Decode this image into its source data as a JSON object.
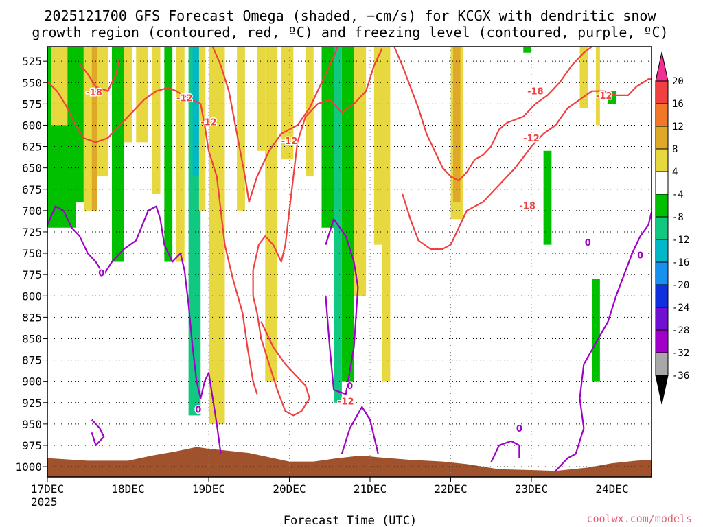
{
  "chart_data": {
    "type": "heatmap",
    "title_line1": "2025121700 GFS Forecast Omega (shaded, −cm/s) for KCGX with dendritic snow",
    "title_line2": "growth region (contoured, red, ºC) and freezing level (contoured, purple, ºC)",
    "xlabel": "Forecast Time (UTC)",
    "year_label": "2025",
    "credit": "coolwx.com/models",
    "x_ticks": [
      "17DEC",
      "18DEC",
      "19DEC",
      "20DEC",
      "21DEC",
      "22DEC",
      "23DEC",
      "24DEC"
    ],
    "x_range_days": [
      0,
      7.5
    ],
    "y_ticks": [
      525,
      550,
      575,
      600,
      625,
      650,
      675,
      700,
      725,
      750,
      775,
      800,
      825,
      850,
      875,
      900,
      925,
      950,
      975,
      1000
    ],
    "y_range_hpa": [
      508,
      1012
    ],
    "colorbar_labels": [
      20,
      16,
      12,
      8,
      4,
      -4,
      -8,
      -12,
      -16,
      -20,
      -24,
      -28,
      -32,
      -36
    ],
    "colorbar_colors": [
      "#f03090",
      "#f04040",
      "#f07828",
      "#e0a828",
      "#e8d840",
      "#ffffff",
      "#00c000",
      "#10c880",
      "#00b8c8",
      "#1890f0",
      "#1030e0",
      "#7010d0",
      "#a000c8",
      "#a8a8a8",
      "#000000"
    ],
    "colors": {
      "omega_positive": "#e8d840",
      "omega_strong_positive": "#e0a828",
      "omega_negative": "#00c000",
      "omega_neg12": "#10c880",
      "omega_neg16": "#00b8c8",
      "dgz_contour": "#f04040",
      "freezing_contour": "#a000c8",
      "terrain": "#a0522d"
    },
    "contour_labels": [
      {
        "text": "-18",
        "kind": "dgz",
        "day": 0.58,
        "hpa": 561
      },
      {
        "text": "-12",
        "kind": "dgz",
        "day": 1.7,
        "hpa": 568
      },
      {
        "text": "-12",
        "kind": "dgz",
        "day": 2.0,
        "hpa": 596
      },
      {
        "text": "-12",
        "kind": "dgz",
        "day": 3.0,
        "hpa": 618
      },
      {
        "text": "-12",
        "kind": "dgz",
        "day": 3.7,
        "hpa": 923
      },
      {
        "text": "-12",
        "kind": "dgz",
        "day": 6.0,
        "hpa": 615
      },
      {
        "text": "-18",
        "kind": "dgz",
        "day": 5.95,
        "hpa": 694
      },
      {
        "text": "-18",
        "kind": "dgz",
        "day": 6.05,
        "hpa": 560
      },
      {
        "text": "-12",
        "kind": "dgz",
        "day": 6.9,
        "hpa": 565
      },
      {
        "text": "0",
        "kind": "frz",
        "day": 0.67,
        "hpa": 773
      },
      {
        "text": "0",
        "kind": "frz",
        "day": 1.87,
        "hpa": 933
      },
      {
        "text": "0",
        "kind": "frz",
        "day": 3.75,
        "hpa": 905
      },
      {
        "text": "0",
        "kind": "frz",
        "day": 5.85,
        "hpa": 955
      },
      {
        "text": "0",
        "kind": "frz",
        "day": 6.7,
        "hpa": 737
      },
      {
        "text": "0",
        "kind": "frz",
        "day": 7.35,
        "hpa": 752
      }
    ],
    "dgz_contours": [
      [
        [
          0,
          549
        ],
        [
          0.12,
          560
        ],
        [
          0.25,
          580
        ],
        [
          0.35,
          600
        ],
        [
          0.45,
          615
        ],
        [
          0.6,
          620
        ],
        [
          0.75,
          615
        ],
        [
          0.9,
          600
        ],
        [
          1.05,
          585
        ],
        [
          1.2,
          570
        ],
        [
          1.35,
          560
        ],
        [
          1.5,
          556
        ],
        [
          1.6,
          560
        ],
        [
          1.7,
          566
        ],
        [
          1.8,
          570
        ],
        [
          1.9,
          575
        ],
        [
          1.95,
          600
        ],
        [
          2.0,
          630
        ],
        [
          2.1,
          660
        ],
        [
          2.15,
          700
        ],
        [
          2.2,
          740
        ],
        [
          2.3,
          780
        ],
        [
          2.42,
          820
        ],
        [
          2.48,
          860
        ],
        [
          2.55,
          900
        ],
        [
          2.6,
          915
        ]
      ],
      [
        [
          0.4,
          528
        ],
        [
          0.5,
          540
        ],
        [
          0.6,
          555
        ],
        [
          0.75,
          560
        ],
        [
          0.85,
          540
        ],
        [
          0.9,
          520
        ]
      ],
      [
        [
          2.05,
          508
        ],
        [
          2.15,
          530
        ],
        [
          2.25,
          560
        ],
        [
          2.35,
          610
        ],
        [
          2.45,
          660
        ],
        [
          2.5,
          690
        ],
        [
          2.6,
          660
        ],
        [
          2.75,
          630
        ],
        [
          2.9,
          610
        ],
        [
          3.1,
          600
        ],
        [
          3.25,
          580
        ],
        [
          3.35,
          560
        ],
        [
          3.45,
          540
        ],
        [
          3.55,
          520
        ],
        [
          3.6,
          508
        ]
      ],
      [
        [
          2.65,
          830
        ],
        [
          2.8,
          860
        ],
        [
          2.95,
          880
        ],
        [
          3.1,
          895
        ],
        [
          3.2,
          905
        ],
        [
          3.25,
          920
        ],
        [
          3.15,
          935
        ],
        [
          3.05,
          940
        ],
        [
          2.95,
          935
        ],
        [
          2.85,
          910
        ],
        [
          2.75,
          880
        ],
        [
          2.65,
          850
        ],
        [
          2.6,
          820
        ],
        [
          2.55,
          800
        ],
        [
          2.55,
          770
        ],
        [
          2.62,
          740
        ],
        [
          2.7,
          730
        ],
        [
          2.8,
          740
        ],
        [
          2.9,
          760
        ],
        [
          2.95,
          740
        ],
        [
          3.0,
          700
        ],
        [
          3.05,
          660
        ],
        [
          3.1,
          620
        ],
        [
          3.2,
          590
        ],
        [
          3.35,
          575
        ],
        [
          3.5,
          570
        ],
        [
          3.65,
          585
        ],
        [
          3.8,
          575
        ],
        [
          3.95,
          560
        ],
        [
          4.05,
          530
        ],
        [
          4.15,
          510
        ]
      ],
      [
        [
          4.3,
          508
        ],
        [
          4.4,
          530
        ],
        [
          4.5,
          555
        ],
        [
          4.6,
          580
        ],
        [
          4.7,
          610
        ],
        [
          4.8,
          630
        ],
        [
          4.9,
          650
        ],
        [
          5.0,
          660
        ],
        [
          5.1,
          665
        ],
        [
          5.2,
          655
        ],
        [
          5.3,
          640
        ],
        [
          5.4,
          635
        ],
        [
          5.5,
          625
        ],
        [
          5.6,
          605
        ],
        [
          5.7,
          597
        ],
        [
          5.9,
          590
        ],
        [
          6.05,
          575
        ],
        [
          6.2,
          565
        ],
        [
          6.35,
          550
        ],
        [
          6.5,
          530
        ],
        [
          6.65,
          515
        ],
        [
          6.75,
          508
        ]
      ],
      [
        [
          4.4,
          680
        ],
        [
          4.5,
          710
        ],
        [
          4.6,
          735
        ],
        [
          4.75,
          745
        ],
        [
          4.9,
          745
        ],
        [
          5.0,
          740
        ],
        [
          5.1,
          720
        ],
        [
          5.2,
          700
        ],
        [
          5.4,
          690
        ],
        [
          5.6,
          670
        ],
        [
          5.8,
          650
        ],
        [
          6.0,
          625
        ],
        [
          6.15,
          610
        ],
        [
          6.3,
          600
        ],
        [
          6.45,
          580
        ],
        [
          6.6,
          570
        ],
        [
          6.75,
          560
        ],
        [
          6.9,
          560
        ],
        [
          7.05,
          565
        ],
        [
          7.2,
          565
        ],
        [
          7.3,
          555
        ],
        [
          7.45,
          546
        ],
        [
          7.5,
          546
        ]
      ]
    ],
    "frz_contours": [
      [
        [
          0,
          717
        ],
        [
          0.1,
          695
        ],
        [
          0.2,
          700
        ],
        [
          0.3,
          720
        ],
        [
          0.4,
          730
        ],
        [
          0.5,
          750
        ],
        [
          0.6,
          760
        ],
        [
          0.7,
          775
        ],
        [
          0.8,
          760
        ],
        [
          0.95,
          745
        ],
        [
          1.1,
          735
        ],
        [
          1.25,
          700
        ],
        [
          1.35,
          695
        ],
        [
          1.4,
          710
        ],
        [
          1.45,
          740
        ],
        [
          1.55,
          760
        ],
        [
          1.65,
          750
        ],
        [
          1.7,
          770
        ],
        [
          1.75,
          810
        ],
        [
          1.8,
          860
        ],
        [
          1.85,
          900
        ],
        [
          1.9,
          920
        ],
        [
          1.95,
          900
        ],
        [
          2.0,
          890
        ],
        [
          2.05,
          920
        ],
        [
          2.1,
          950
        ],
        [
          2.15,
          985
        ]
      ],
      [
        [
          0.55,
          945
        ],
        [
          0.65,
          955
        ],
        [
          0.7,
          965
        ],
        [
          0.6,
          975
        ],
        [
          0.55,
          960
        ]
      ],
      [
        [
          3.45,
          740
        ],
        [
          3.55,
          710
        ],
        [
          3.7,
          730
        ],
        [
          3.8,
          760
        ],
        [
          3.85,
          790
        ],
        [
          3.8,
          860
        ],
        [
          3.7,
          915
        ],
        [
          3.55,
          910
        ],
        [
          3.5,
          860
        ],
        [
          3.45,
          800
        ]
      ],
      [
        [
          3.65,
          985
        ],
        [
          3.75,
          955
        ],
        [
          3.9,
          930
        ],
        [
          4.0,
          945
        ],
        [
          4.05,
          965
        ],
        [
          4.1,
          985
        ]
      ],
      [
        [
          5.5,
          995
        ],
        [
          5.6,
          975
        ],
        [
          5.75,
          970
        ],
        [
          5.85,
          975
        ],
        [
          5.85,
          990
        ]
      ],
      [
        [
          6.3,
          1005
        ],
        [
          6.45,
          990
        ],
        [
          6.55,
          985
        ],
        [
          6.65,
          955
        ],
        [
          6.6,
          920
        ],
        [
          6.65,
          880
        ],
        [
          6.8,
          855
        ],
        [
          6.95,
          830
        ],
        [
          7.05,
          800
        ],
        [
          7.15,
          775
        ],
        [
          7.25,
          750
        ],
        [
          7.35,
          730
        ],
        [
          7.45,
          717
        ],
        [
          7.5,
          702
        ]
      ]
    ],
    "omega_shading": [
      {
        "d0": 0.0,
        "d1": 0.35,
        "p0": 508,
        "p1": 720,
        "v": -8
      },
      {
        "d0": 0.05,
        "d1": 0.3,
        "p0": 508,
        "p1": 600,
        "v": 6
      },
      {
        "d0": 0.25,
        "d1": 0.45,
        "p0": 508,
        "p1": 690,
        "v": -8
      },
      {
        "d0": 0.45,
        "d1": 0.55,
        "p0": 508,
        "p1": 700,
        "v": 6
      },
      {
        "d0": 0.55,
        "d1": 0.62,
        "p0": 508,
        "p1": 700,
        "v": 10
      },
      {
        "d0": 0.62,
        "d1": 0.75,
        "p0": 508,
        "p1": 660,
        "v": 6
      },
      {
        "d0": 0.8,
        "d1": 0.95,
        "p0": 508,
        "p1": 760,
        "v": -8
      },
      {
        "d0": 0.95,
        "d1": 1.05,
        "p0": 508,
        "p1": 620,
        "v": 6
      },
      {
        "d0": 1.1,
        "d1": 1.25,
        "p0": 508,
        "p1": 620,
        "v": 6
      },
      {
        "d0": 1.3,
        "d1": 1.4,
        "p0": 508,
        "p1": 680,
        "v": 6
      },
      {
        "d0": 1.45,
        "d1": 1.55,
        "p0": 508,
        "p1": 760,
        "v": -8
      },
      {
        "d0": 1.6,
        "d1": 1.7,
        "p0": 508,
        "p1": 760,
        "v": 6
      },
      {
        "d0": 1.75,
        "d1": 1.9,
        "p0": 508,
        "p1": 940,
        "v": -12
      },
      {
        "d0": 1.8,
        "d1": 1.88,
        "p0": 508,
        "p1": 660,
        "v": -16
      },
      {
        "d0": 1.88,
        "d1": 1.96,
        "p0": 508,
        "p1": 700,
        "v": 6
      },
      {
        "d0": 2.0,
        "d1": 2.2,
        "p0": 508,
        "p1": 950,
        "v": 6
      },
      {
        "d0": 2.35,
        "d1": 2.45,
        "p0": 508,
        "p1": 700,
        "v": 6
      },
      {
        "d0": 2.6,
        "d1": 2.7,
        "p0": 508,
        "p1": 630,
        "v": 6
      },
      {
        "d0": 2.7,
        "d1": 2.85,
        "p0": 508,
        "p1": 900,
        "v": 6
      },
      {
        "d0": 2.9,
        "d1": 3.05,
        "p0": 508,
        "p1": 640,
        "v": 6
      },
      {
        "d0": 3.2,
        "d1": 3.3,
        "p0": 508,
        "p1": 660,
        "v": 6
      },
      {
        "d0": 3.4,
        "d1": 3.55,
        "p0": 508,
        "p1": 720,
        "v": -8
      },
      {
        "d0": 3.55,
        "d1": 3.65,
        "p0": 508,
        "p1": 925,
        "v": -12
      },
      {
        "d0": 3.65,
        "d1": 3.8,
        "p0": 508,
        "p1": 900,
        "v": -8
      },
      {
        "d0": 3.8,
        "d1": 3.95,
        "p0": 508,
        "p1": 800,
        "v": 6
      },
      {
        "d0": 4.05,
        "d1": 4.15,
        "p0": 508,
        "p1": 740,
        "v": 6
      },
      {
        "d0": 4.15,
        "d1": 4.25,
        "p0": 508,
        "p1": 900,
        "v": 6
      },
      {
        "d0": 5.0,
        "d1": 5.15,
        "p0": 508,
        "p1": 710,
        "v": 6
      },
      {
        "d0": 5.03,
        "d1": 5.12,
        "p0": 508,
        "p1": 690,
        "v": 10
      },
      {
        "d0": 6.15,
        "d1": 6.25,
        "p0": 630,
        "p1": 740,
        "v": -8
      },
      {
        "d0": 6.6,
        "d1": 6.7,
        "p0": 508,
        "p1": 580,
        "v": 6
      },
      {
        "d0": 6.8,
        "d1": 6.85,
        "p0": 508,
        "p1": 600,
        "v": 6
      },
      {
        "d0": 6.75,
        "d1": 6.85,
        "p0": 780,
        "p1": 900,
        "v": -8
      },
      {
        "d0": 6.95,
        "d1": 7.05,
        "p0": 560,
        "p1": 575,
        "v": -8
      },
      {
        "d0": 5.9,
        "d1": 6.0,
        "p0": 508,
        "p1": 515,
        "v": -8
      }
    ],
    "terrain_hpa": [
      [
        0,
        990
      ],
      [
        0.5,
        993
      ],
      [
        1.0,
        993
      ],
      [
        1.3,
        987
      ],
      [
        1.6,
        982
      ],
      [
        1.85,
        977
      ],
      [
        2.0,
        979
      ],
      [
        2.2,
        981
      ],
      [
        2.5,
        984
      ],
      [
        2.8,
        990
      ],
      [
        3.0,
        994
      ],
      [
        3.3,
        994
      ],
      [
        3.6,
        990
      ],
      [
        3.9,
        987
      ],
      [
        4.1,
        989
      ],
      [
        4.5,
        992
      ],
      [
        4.9,
        994
      ],
      [
        5.2,
        997
      ],
      [
        5.6,
        1003
      ],
      [
        6.0,
        1004
      ],
      [
        6.3,
        1005
      ],
      [
        6.7,
        1001
      ],
      [
        7.0,
        996
      ],
      [
        7.3,
        993
      ],
      [
        7.5,
        992
      ]
    ]
  }
}
